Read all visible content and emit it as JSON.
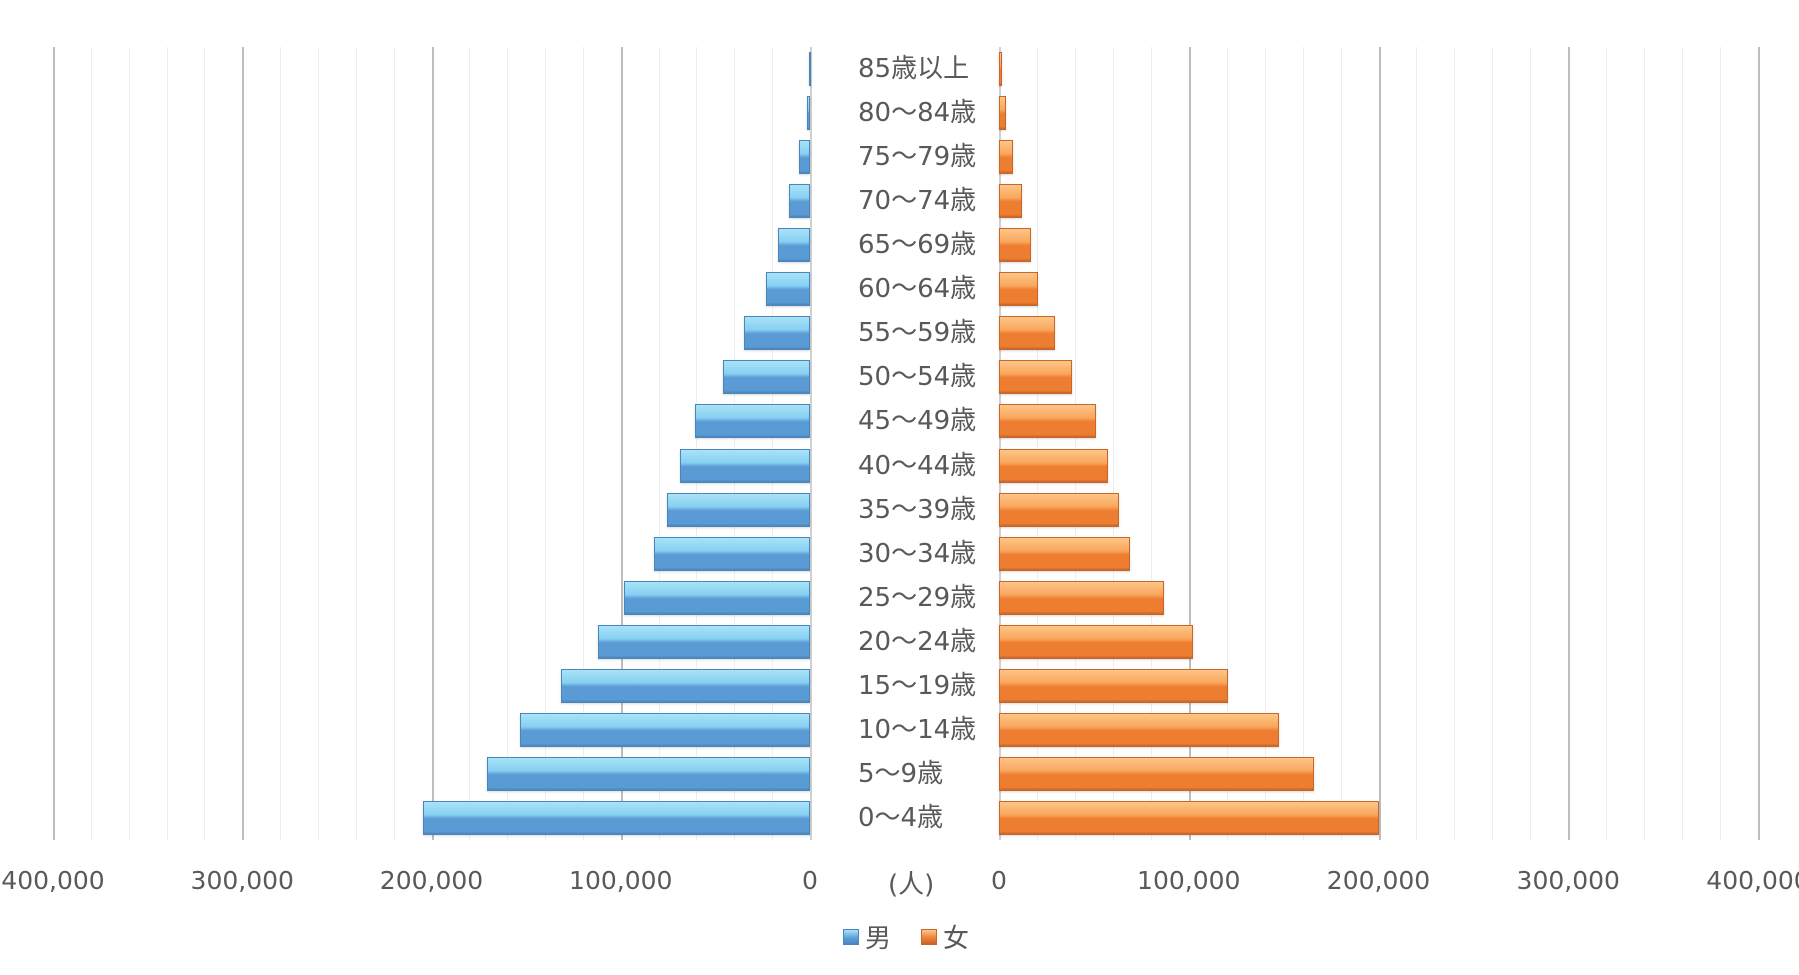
{
  "chart_data": {
    "type": "bar",
    "subtype": "population-pyramid",
    "title": "",
    "unit_label": "(人)",
    "orientation": "horizontal",
    "categories": [
      "85歳以上",
      "80～84歳",
      "75～79歳",
      "70～74歳",
      "65～69歳",
      "60～64歳",
      "55～59歳",
      "50～54歳",
      "45～49歳",
      "40～44歳",
      "35～39歳",
      "30～34歳",
      "25～29歳",
      "20～24歳",
      "15～19歳",
      "10～14歳",
      "5～9歳",
      "0～4歳"
    ],
    "series": [
      {
        "name": "男",
        "color": "#5b9bd5",
        "side": "left",
        "values": [
          500,
          1600,
          5800,
          11000,
          17000,
          23000,
          35000,
          46000,
          61000,
          68500,
          75500,
          82500,
          98500,
          112000,
          131500,
          153000,
          170500,
          204500
        ]
      },
      {
        "name": "女",
        "color": "#ed7d31",
        "side": "right",
        "values": [
          1500,
          3700,
          7400,
          12000,
          16800,
          20500,
          29500,
          38500,
          51000,
          57500,
          63500,
          69000,
          87000,
          102500,
          120500,
          147500,
          166000,
          200500
        ]
      }
    ],
    "x_ticks_left": [
      "400,000",
      "300,000",
      "200,000",
      "100,000",
      "0"
    ],
    "x_ticks_right": [
      "0",
      "100,000",
      "200,000",
      "300,000",
      "400,000"
    ],
    "xlim": [
      0,
      400000
    ],
    "grid": true,
    "legend_position": "bottom",
    "xlabel": "",
    "ylabel": ""
  },
  "legend": {
    "male": "男",
    "female": "女"
  }
}
